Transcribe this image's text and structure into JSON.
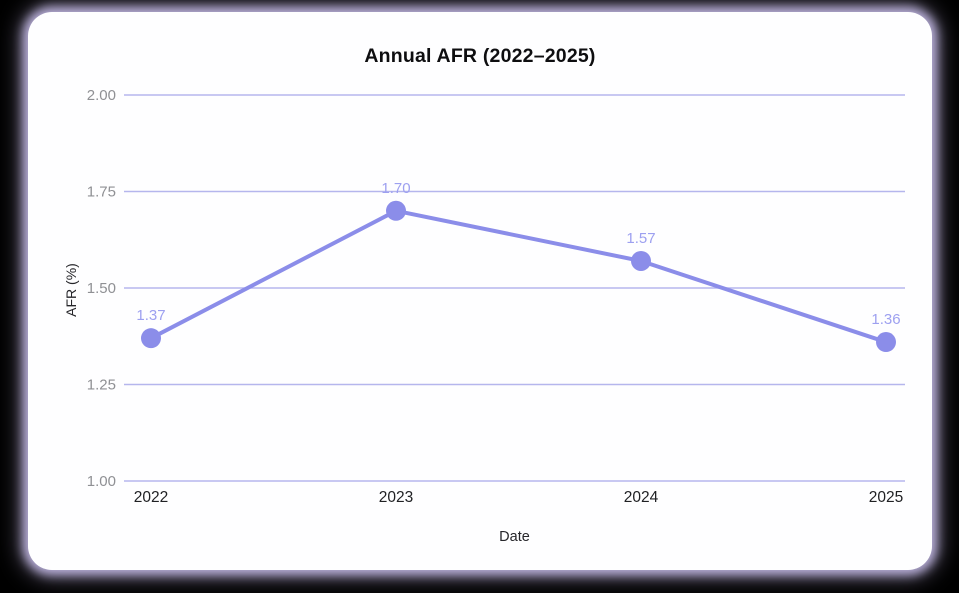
{
  "window": {
    "background": "#000000"
  },
  "card": {
    "background": "#fefeff",
    "glow_color": "#cbc1ee"
  },
  "chart_data": {
    "type": "line",
    "title": "Annual AFR (2022–2025)",
    "xlabel": "Date",
    "ylabel": "AFR (%)",
    "categories": [
      "2022",
      "2023",
      "2024",
      "2025"
    ],
    "series": [
      {
        "name": "AFR",
        "values": [
          1.37,
          1.7,
          1.57,
          1.36
        ]
      }
    ],
    "point_labels": [
      "1.37",
      "1.70",
      "1.57",
      "1.36"
    ],
    "ylim": [
      1.0,
      2.0
    ],
    "yticks": [
      1.0,
      1.25,
      1.5,
      1.75,
      2.0
    ],
    "ytick_labels": [
      "1.00",
      "1.25",
      "1.50",
      "1.75",
      "2.00"
    ],
    "grid": true,
    "legend": false,
    "colors": {
      "line": "#8b8de9",
      "point": "#8b8de9",
      "point_label": "#9da0f0",
      "gridline": "#b5b6ed",
      "ytick_text": "#8f9094",
      "xtick_text": "#202124",
      "title_text": "#0e0e10",
      "axis_title_text": "#26262a"
    }
  }
}
